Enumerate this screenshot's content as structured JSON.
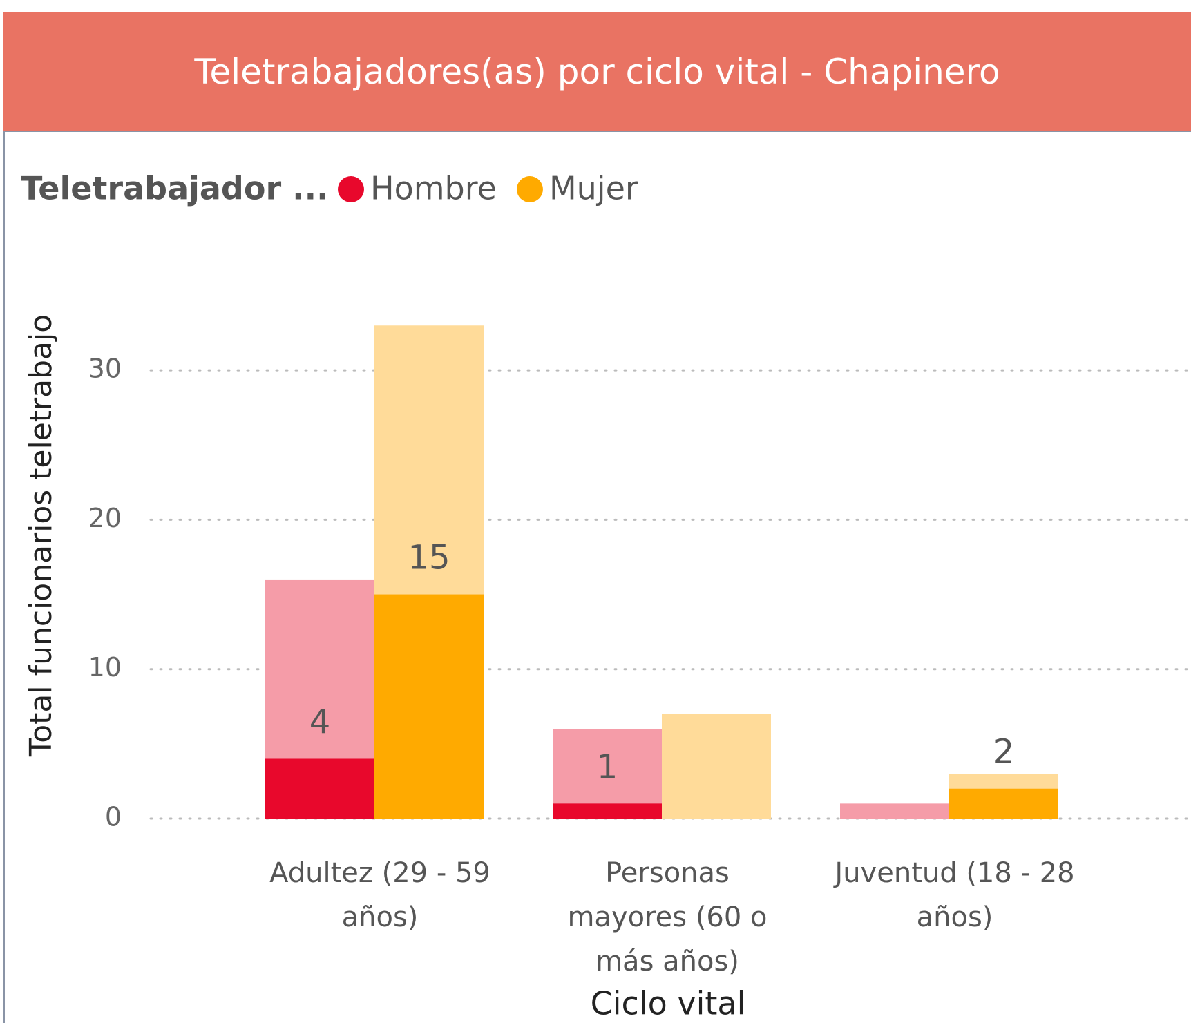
{
  "chart_data": {
    "type": "bar",
    "title": "Teletrabajadores(as) por ciclo vital - Chapinero",
    "legend_title": "Teletrabajador ...",
    "x_label": "Ciclo vital",
    "y_label": "Total funcionarios teletrabajo",
    "categories": [
      "Adultez (29 - 59 años)",
      "Personas mayores (60 o más años)",
      "Juventud (18 - 28 años)"
    ],
    "series": [
      {
        "name": "Hombre",
        "color": "#E8082C",
        "background_color": "#F59CA8",
        "values": [
          4,
          1,
          0
        ],
        "totals": [
          16,
          6,
          1
        ]
      },
      {
        "name": "Mujer",
        "color": "#FFAA00",
        "background_color": "#FFDB99",
        "values": [
          15,
          0,
          2
        ],
        "totals": [
          33,
          7,
          3
        ]
      }
    ],
    "ylim": [
      0,
      35
    ],
    "yticks": [
      0,
      10,
      20,
      30
    ],
    "grid": true,
    "legend": "top-left"
  }
}
